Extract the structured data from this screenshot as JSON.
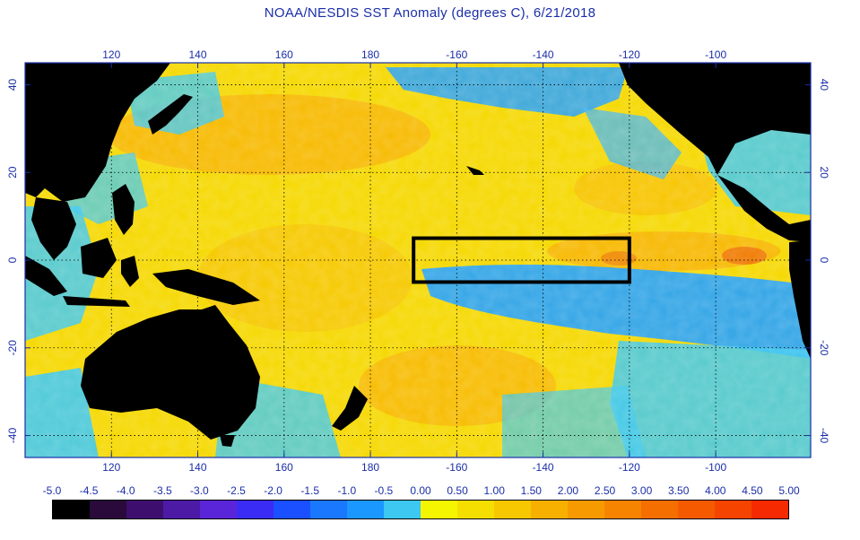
{
  "title": "NOAA/NESDIS SST Anomaly (degrees C), 6/21/2018",
  "map": {
    "lon_range": [
      100,
      282
    ],
    "lat_range": [
      -45,
      45
    ],
    "lon_ticks": [
      {
        "value": 120,
        "label": "120"
      },
      {
        "value": 140,
        "label": "140"
      },
      {
        "value": 160,
        "label": "160"
      },
      {
        "value": 180,
        "label": "180"
      },
      {
        "value": 200,
        "label": "-160"
      },
      {
        "value": 220,
        "label": "-140"
      },
      {
        "value": 240,
        "label": "-120"
      },
      {
        "value": 260,
        "label": "-100"
      }
    ],
    "lat_ticks": [
      {
        "value": 40,
        "label": "40"
      },
      {
        "value": 20,
        "label": "20"
      },
      {
        "value": 0,
        "label": "0"
      },
      {
        "value": -20,
        "label": "-20"
      },
      {
        "value": -40,
        "label": "-40"
      }
    ],
    "nino_box": {
      "lon_min": 190,
      "lon_max": 240,
      "lat_min": -5,
      "lat_max": 5
    },
    "colors": {
      "land": "#000000",
      "frame": "#1a2ea8",
      "grid": "#000000",
      "warm_base": "#f5d800",
      "warm_mid": "#f7b500",
      "cool_base": "#1ea0ff",
      "cool_light": "#3cc8f0",
      "hot_spot": "#f07a00"
    }
  },
  "colorbar": {
    "labels": [
      "-5.0",
      "-4.5",
      "-4.0",
      "-3.5",
      "-3.0",
      "-2.5",
      "-2.0",
      "-1.5",
      "-1.0",
      "-0.5",
      "0.00",
      "0.50",
      "1.00",
      "1.50",
      "2.00",
      "2.50",
      "3.00",
      "3.50",
      "4.00",
      "4.50",
      "5.00"
    ],
    "colors": [
      "#000000",
      "#2a0a3a",
      "#3d0e6e",
      "#4d1aa6",
      "#5a25d8",
      "#3a2cf5",
      "#1a50ff",
      "#1a78ff",
      "#1a98ff",
      "#3cc8f0",
      "#f5f500",
      "#f5df00",
      "#f7c800",
      "#f7b000",
      "#f79a00",
      "#f78400",
      "#f56e00",
      "#f55a00",
      "#f54400",
      "#f52a00"
    ]
  }
}
